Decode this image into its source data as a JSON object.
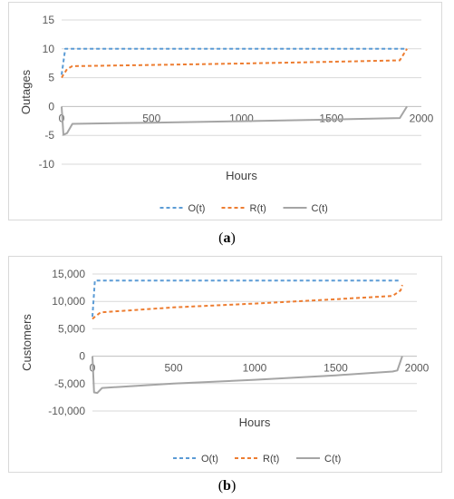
{
  "chart_data": [
    {
      "type": "line",
      "panel_label": "a",
      "xlabel": "Hours",
      "ylabel": "Outages",
      "xlim": [
        0,
        2000
      ],
      "ylim": [
        -10,
        15
      ],
      "x_ticks": [
        0,
        500,
        1000,
        1500,
        2000
      ],
      "x_tick_labels": [
        "0",
        "500",
        "1000",
        "1500",
        "2000"
      ],
      "y_ticks": [
        15,
        10,
        5,
        0,
        -5,
        -10
      ],
      "y_tick_labels": [
        "15",
        "10",
        "5",
        "0",
        "-5",
        "-10"
      ],
      "grid": "horizontal",
      "legend": "bottom",
      "series": [
        {
          "name": "O(t)",
          "color": "#5b9bd5",
          "dash": "dashed",
          "points": [
            [
              0,
              5.5
            ],
            [
              20,
              10
            ],
            [
              100,
              10
            ],
            [
              500,
              10
            ],
            [
              1000,
              10
            ],
            [
              1500,
              10
            ],
            [
              1900,
              10
            ],
            [
              1920,
              10
            ]
          ]
        },
        {
          "name": "R(t)",
          "color": "#ed7d31",
          "dash": "dashed",
          "points": [
            [
              0,
              5
            ],
            [
              10,
              5.5
            ],
            [
              30,
              6.5
            ],
            [
              60,
              7
            ],
            [
              500,
              7.2
            ],
            [
              1000,
              7.45
            ],
            [
              1500,
              7.75
            ],
            [
              1880,
              8
            ],
            [
              1920,
              10
            ]
          ]
        },
        {
          "name": "C(t)",
          "color": "#a5a5a5",
          "dash": "solid",
          "points": [
            [
              0,
              0
            ],
            [
              10,
              -4.9
            ],
            [
              30,
              -4.6
            ],
            [
              60,
              -3
            ],
            [
              500,
              -2.8
            ],
            [
              1000,
              -2.55
            ],
            [
              1500,
              -2.25
            ],
            [
              1880,
              -2
            ],
            [
              1920,
              0
            ]
          ]
        }
      ]
    },
    {
      "type": "line",
      "panel_label": "b",
      "xlabel": "Hours",
      "ylabel": "Customers",
      "xlim": [
        0,
        2000
      ],
      "ylim": [
        -10000,
        15000
      ],
      "x_ticks": [
        0,
        500,
        1000,
        1500,
        2000
      ],
      "x_tick_labels": [
        "0",
        "500",
        "1000",
        "1500",
        "2000"
      ],
      "y_ticks": [
        15000,
        10000,
        5000,
        0,
        -5000,
        -10000
      ],
      "y_tick_labels": [
        "15,000",
        "10,000",
        "5,000",
        "0",
        "-5,000",
        "-10,000"
      ],
      "grid": "horizontal",
      "legend": "bottom",
      "series": [
        {
          "name": "O(t)",
          "color": "#5b9bd5",
          "dash": "dashed",
          "points": [
            [
              0,
              7200
            ],
            [
              15,
              13800
            ],
            [
              100,
              13800
            ],
            [
              500,
              13800
            ],
            [
              1000,
              13800
            ],
            [
              1500,
              13800
            ],
            [
              1900,
              13800
            ]
          ]
        },
        {
          "name": "R(t)",
          "color": "#ed7d31",
          "dash": "dashed",
          "points": [
            [
              0,
              6800
            ],
            [
              15,
              7200
            ],
            [
              50,
              8000
            ],
            [
              500,
              8900
            ],
            [
              1000,
              9600
            ],
            [
              1500,
              10400
            ],
            [
              1850,
              11000
            ],
            [
              1900,
              12000
            ],
            [
              1910,
              13000
            ]
          ]
        },
        {
          "name": "C(t)",
          "color": "#a5a5a5",
          "dash": "solid",
          "points": [
            [
              0,
              0
            ],
            [
              10,
              -6600
            ],
            [
              30,
              -6700
            ],
            [
              60,
              -5800
            ],
            [
              500,
              -5000
            ],
            [
              1000,
              -4300
            ],
            [
              1500,
              -3500
            ],
            [
              1850,
              -2800
            ],
            [
              1880,
              -2600
            ],
            [
              1910,
              0
            ]
          ]
        }
      ]
    }
  ],
  "captions": [
    {
      "label": "a",
      "text": "(a)"
    },
    {
      "label": "b",
      "text": "(b)"
    }
  ]
}
